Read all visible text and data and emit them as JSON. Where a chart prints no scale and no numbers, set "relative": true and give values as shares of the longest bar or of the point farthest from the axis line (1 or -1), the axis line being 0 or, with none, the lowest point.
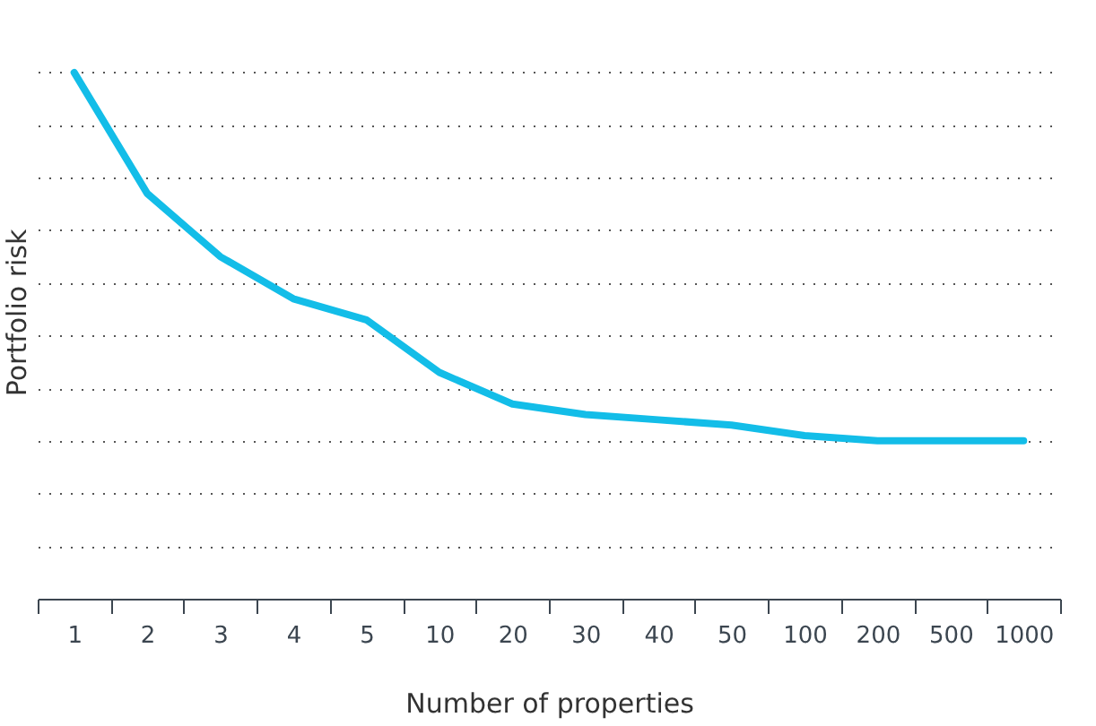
{
  "chart_data": {
    "type": "line",
    "relative": true,
    "xlabel": "Number of properties",
    "ylabel": "Portfolio risk",
    "categories": [
      "1",
      "2",
      "3",
      "4",
      "5",
      "10",
      "20",
      "30",
      "40",
      "50",
      "100",
      "200",
      "500",
      "1000"
    ],
    "series": [
      {
        "color": "#13bde8",
        "values": [
          1.0,
          0.77,
          0.65,
          0.57,
          0.53,
          0.43,
          0.37,
          0.35,
          0.34,
          0.33,
          0.31,
          0.3,
          0.3,
          0.3
        ]
      }
    ],
    "grid": "y",
    "marker": "none",
    "line_style": "solid"
  }
}
